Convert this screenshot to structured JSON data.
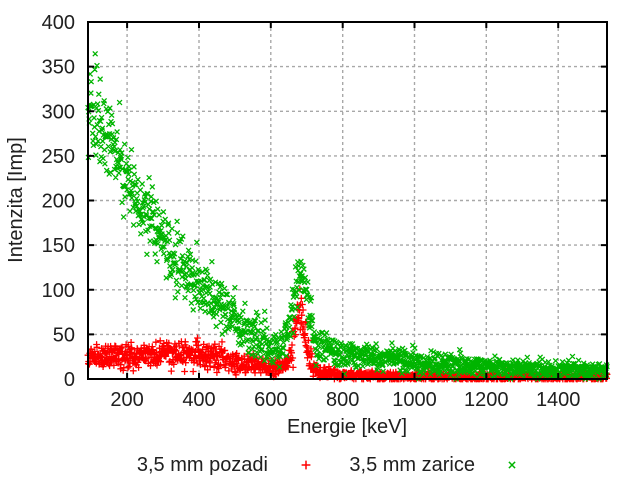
{
  "page": {
    "background": "#ffffff"
  },
  "chart_data": {
    "type": "scatter",
    "title": "",
    "xlabel": "Energie [keV]",
    "ylabel": "Intenzita [Imp]",
    "xlim": [
      91,
      1536
    ],
    "ylim": [
      0,
      400
    ],
    "x_ticks": [
      200,
      400,
      600,
      800,
      1000,
      1200,
      1400
    ],
    "y_ticks": [
      0,
      50,
      100,
      150,
      200,
      250,
      300,
      350,
      400
    ],
    "grid": true,
    "legend_position": "below-center",
    "colors": {
      "border": "#000000",
      "grid": "#a8a8a8",
      "text": "#202020",
      "background": "#ffffff"
    },
    "series": [
      {
        "name": "3,5 mm pozadi",
        "marker": "plus",
        "color": "#ff0000",
        "seed": 1337,
        "energy_step_keV": 1,
        "noise_factor": 1.4,
        "peak": {
          "center": 680,
          "sigma": 16.5,
          "amplitude": 62
        },
        "continuum_points": [
          [
            91,
            25
          ],
          [
            150,
            25.5
          ],
          [
            200,
            26
          ],
          [
            300,
            27
          ],
          [
            400,
            27
          ],
          [
            440,
            26
          ],
          [
            480,
            22
          ],
          [
            520,
            18
          ],
          [
            560,
            15
          ],
          [
            600,
            13
          ],
          [
            640,
            13
          ],
          [
            700,
            9
          ],
          [
            750,
            6.5
          ],
          [
            800,
            4.5
          ],
          [
            900,
            3.5
          ],
          [
            1000,
            3
          ],
          [
            1100,
            2.8
          ],
          [
            1200,
            2.6
          ],
          [
            1400,
            2.4
          ],
          [
            1536,
            2.4
          ]
        ]
      },
      {
        "name": "3,5 mm zarice",
        "marker": "cross",
        "color": "#00b400",
        "seed": 4242,
        "energy_step_keV": 1,
        "noise_factor": 1.5,
        "peak": {
          "center": 683,
          "sigma": 21,
          "amplitude": 80
        },
        "continuum_points": [
          [
            91,
            310
          ],
          [
            120,
            290
          ],
          [
            150,
            265
          ],
          [
            200,
            228
          ],
          [
            250,
            188
          ],
          [
            300,
            155
          ],
          [
            350,
            128
          ],
          [
            400,
            105
          ],
          [
            450,
            85
          ],
          [
            500,
            66
          ],
          [
            550,
            48
          ],
          [
            600,
            36
          ],
          [
            640,
            32
          ],
          [
            700,
            34
          ],
          [
            750,
            36
          ],
          [
            800,
            28
          ],
          [
            900,
            23.5
          ],
          [
            1000,
            19.5
          ],
          [
            1100,
            16.5
          ],
          [
            1200,
            14
          ],
          [
            1300,
            12
          ],
          [
            1400,
            10.5
          ],
          [
            1536,
            9
          ]
        ]
      }
    ]
  }
}
